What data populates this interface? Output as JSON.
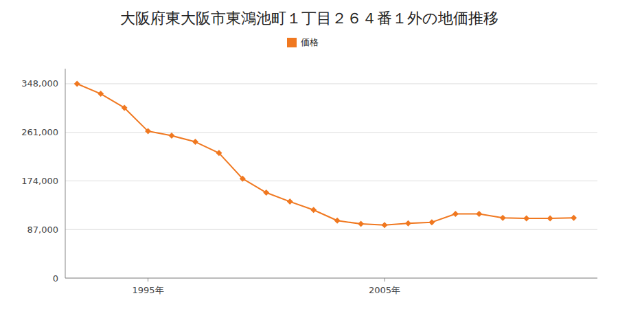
{
  "chart_data": {
    "type": "line",
    "title": "大阪府東大阪市東鴻池町１丁目２６４番１外の地価推移",
    "x": [
      1992,
      1993,
      1994,
      1995,
      1996,
      1997,
      1998,
      1999,
      2000,
      2001,
      2002,
      2003,
      2004,
      2005,
      2006,
      2007,
      2008,
      2009,
      2010,
      2011,
      2012,
      2013
    ],
    "series": [
      {
        "name": "価格",
        "color": "#f07820",
        "marker": "diamond",
        "line_style": "solid",
        "values": [
          348000,
          330000,
          305000,
          263000,
          255000,
          244000,
          224000,
          178000,
          153000,
          137000,
          122000,
          103000,
          97000,
          95000,
          98000,
          100000,
          115000,
          115000,
          108000,
          107000,
          107000,
          108000
        ]
      }
    ],
    "xlim": [
      1991.5,
      2014
    ],
    "xticks": [
      {
        "value": 1995,
        "label": "1995年"
      },
      {
        "value": 2005,
        "label": "2005年"
      }
    ],
    "ylim": [
      0,
      375000
    ],
    "yticks": [
      0,
      {
        "value": 87000,
        "label": "87,000"
      },
      {
        "value": 174000,
        "label": "174,000"
      },
      {
        "value": 261000,
        "label": "261,000"
      },
      {
        "value": 348000,
        "label": "348,000"
      }
    ],
    "grid": true,
    "legend": "top"
  }
}
